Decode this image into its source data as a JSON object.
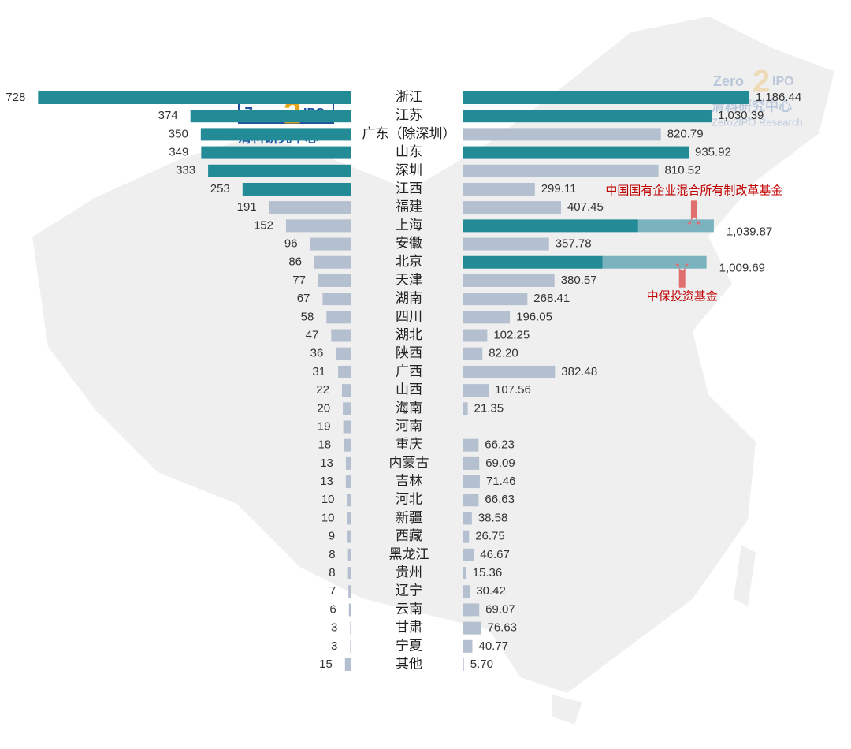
{
  "chart_data": {
    "type": "butterfly-bar",
    "categories": [
      "浙江",
      "江苏",
      "广东（除深圳）",
      "山东",
      "深圳",
      "江西",
      "福建",
      "上海",
      "安徽",
      "北京",
      "天津",
      "湖南",
      "四川",
      "湖北",
      "陕西",
      "广西",
      "山西",
      "海南",
      "河南",
      "重庆",
      "内蒙古",
      "吉林",
      "河北",
      "新疆",
      "西藏",
      "黑龙江",
      "贵州",
      "辽宁",
      "云南",
      "甘肃",
      "宁夏",
      "其他"
    ],
    "series": [
      {
        "side": "left",
        "xlim": [
          0,
          800
        ],
        "values": [
          728,
          374,
          350,
          349,
          333,
          253,
          191,
          152,
          96,
          86,
          77,
          67,
          58,
          47,
          36,
          31,
          22,
          20,
          19,
          18,
          13,
          13,
          10,
          10,
          9,
          8,
          8,
          7,
          6,
          3,
          3,
          15
        ],
        "colors": [
          "#238b96",
          "#238b96",
          "#238b96",
          "#238b96",
          "#238b96",
          "#238b96",
          "#b4bfd0",
          "#b4bfd0",
          "#b4bfd0",
          "#b4bfd0",
          "#b4bfd0",
          "#b4bfd0",
          "#b4bfd0",
          "#b4bfd0",
          "#b4bfd0",
          "#b4bfd0",
          "#b4bfd0",
          "#b4bfd0",
          "#b4bfd0",
          "#b4bfd0",
          "#b4bfd0",
          "#b4bfd0",
          "#b4bfd0",
          "#b4bfd0",
          "#b4bfd0",
          "#b4bfd0",
          "#b4bfd0",
          "#b4bfd0",
          "#b4bfd0",
          "#b4bfd0",
          "#b4bfd0",
          "#b4bfd0"
        ]
      },
      {
        "side": "right",
        "xlim": [
          0,
          1200
        ],
        "values": [
          1186.44,
          1030.39,
          820.79,
          935.92,
          810.52,
          299.11,
          407.45,
          1039.87,
          357.78,
          1009.69,
          380.57,
          268.41,
          196.05,
          102.25,
          82.2,
          382.48,
          107.56,
          21.35,
          null,
          66.23,
          69.09,
          71.46,
          66.63,
          38.58,
          26.75,
          46.67,
          15.36,
          30.42,
          69.07,
          76.63,
          40.77,
          5.7
        ],
        "value_labels": [
          "1,186.44",
          "1,030.39",
          "820.79",
          "935.92",
          "810.52",
          "299.11",
          "407.45",
          "1,039.87",
          "357.78",
          "1,009.69",
          "380.57",
          "268.41",
          "196.05",
          "102.25",
          "82.20",
          "382.48",
          "107.56",
          "21.35",
          null,
          "66.23",
          "69.09",
          "71.46",
          "66.63",
          "38.58",
          "26.75",
          "46.67",
          "15.36",
          "30.42",
          "69.07",
          "76.63",
          "40.77",
          "5.70"
        ],
        "colors": [
          "#238b96",
          "#238b96",
          "#b4bfd0",
          "#238b96",
          "#b4bfd0",
          "#b4bfd0",
          "#b4bfd0",
          "#238b96",
          "#b4bfd0",
          "#238b96",
          "#b4bfd0",
          "#b4bfd0",
          "#b4bfd0",
          "#b4bfd0",
          "#b4bfd0",
          "#b4bfd0",
          "#b4bfd0",
          "#b4bfd0",
          "#b4bfd0",
          "#b4bfd0",
          "#b4bfd0",
          "#b4bfd0",
          "#b4bfd0",
          "#b4bfd0",
          "#b4bfd0",
          "#b4bfd0",
          "#b4bfd0",
          "#b4bfd0",
          "#b4bfd0",
          "#b4bfd0",
          "#b4bfd0",
          "#b4bfd0"
        ],
        "highlight_color": "#7ab3bd",
        "highlights": [
          {
            "text": "中国国有企业混合所有制改革基金",
            "category": "上海",
            "value": 313
          },
          {
            "text": "中保投资基金",
            "category": "北京",
            "value": 430
          }
        ]
      }
    ]
  },
  "logo": {
    "zero": "Zero",
    "two": "2",
    "ipo": "IPO",
    "cn": "清科研究中心",
    "en": "Zero2IPO Research"
  }
}
